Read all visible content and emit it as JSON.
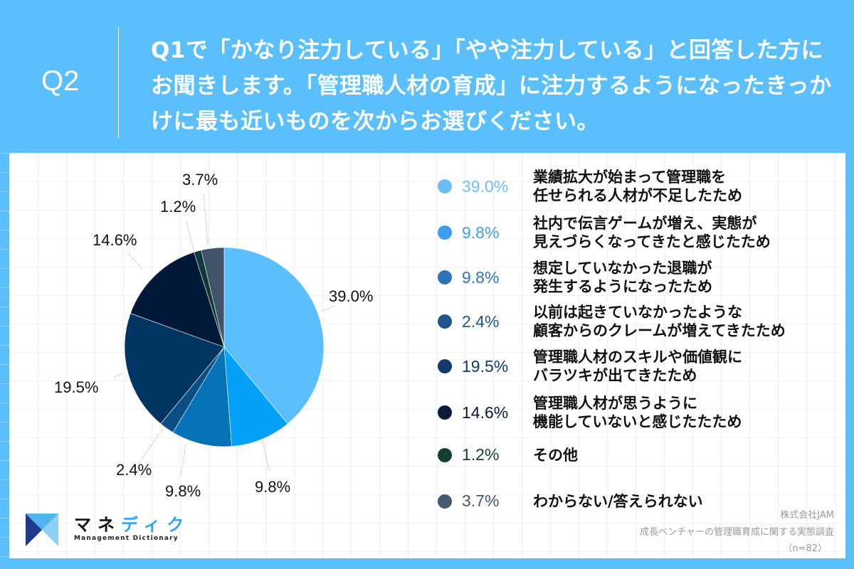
{
  "header": {
    "question_label": "Q2",
    "question_text": "Q1で「かなり注力している」「やや注力している」と回答した方にお聞きします。「管理職人材の育成」に注力するようになったきっかけに最も近いものを次からお選びください。"
  },
  "chart_data": {
    "type": "pie",
    "title": "Q2",
    "start_angle": "12 o'clock, clockwise",
    "categories": [
      "業績拡大が始まって管理職を任せられる人材が不足したため",
      "社内で伝言ゲームが増え、実態が見えづらくなってきたと感じたため",
      "想定していなかった退職が発生するようになったため",
      "以前は起きていなかったような顧客からのクレームが増えてきたため",
      "管理職人材のスキルや価値観にバラツキが出てきたため",
      "管理職人材が思うように機能していないと感じたたため",
      "その他",
      "わからない/答えられない"
    ],
    "values": [
      39.0,
      9.8,
      9.8,
      2.4,
      19.5,
      14.6,
      1.2,
      3.7
    ],
    "colors": [
      "#5bbffb",
      "#04a1fb",
      "#0672b8",
      "#094f86",
      "#003461",
      "#021a37",
      "#11393a",
      "#3f5468"
    ],
    "legend_dot_colors": [
      "#6bbdf5",
      "#3d9ef0",
      "#2e73b8",
      "#20548a",
      "#143a6b",
      "#0b1c3a",
      "#143d36",
      "#435a6f"
    ],
    "labels": [
      "39.0%",
      "9.8%",
      "9.8%",
      "2.4%",
      "19.5%",
      "14.6%",
      "1.2%",
      "3.7%"
    ],
    "legend_position": "right",
    "n": 82
  },
  "legend": [
    {
      "pct": "39.0%",
      "line1": "業績拡大が始まって管理職を",
      "line2": "任せられる人材が不足したため"
    },
    {
      "pct": "9.8%",
      "line1": "社内で伝言ゲームが増え、実態が",
      "line2": "見えづらくなってきたと感じたため"
    },
    {
      "pct": "9.8%",
      "line1": "想定していなかった退職が",
      "line2": "発生するようになったため"
    },
    {
      "pct": "2.4%",
      "line1": "以前は起きていなかったような",
      "line2": "顧客からのクレームが増えてきたため"
    },
    {
      "pct": "19.5%",
      "line1": "管理職人材のスキルや価値観に",
      "line2": "バラツキが出てきたため"
    },
    {
      "pct": "14.6%",
      "line1": "管理職人材が思うように",
      "line2": "機能していないと感じたたため"
    },
    {
      "pct": "1.2%",
      "line1": "その他",
      "line2": ""
    },
    {
      "pct": "3.7%",
      "line1": "わからない/答えられない",
      "line2": ""
    }
  ],
  "source": {
    "company": "株式会社JAM",
    "survey": "成長ベンチャーの管理職育成に関する実態調査",
    "sample": "（n=82）"
  },
  "logo": {
    "name_part1": "マネ",
    "name_part2": "ディク",
    "subtitle": "Management Dictionary"
  }
}
